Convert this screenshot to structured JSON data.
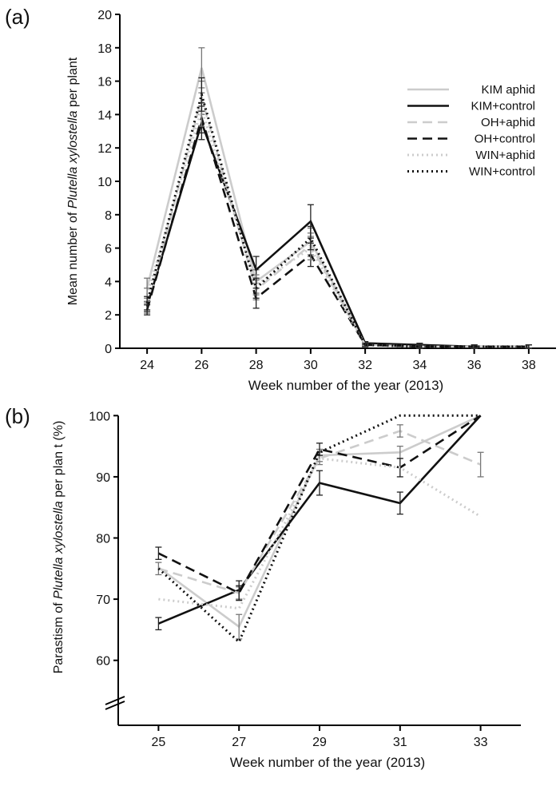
{
  "panels": {
    "a_label": "(a)",
    "b_label": "(b)"
  },
  "chart_data": [
    {
      "type": "line",
      "panel": "(a)",
      "ylabel_pre": "Mean number of ",
      "ylabel_species": "Plutella xylostella",
      "ylabel_post": " per plant",
      "xlabel": "Week number of the year (2013)",
      "xlim": [
        23,
        39
      ],
      "ylim": [
        0,
        20
      ],
      "xticks": [
        24,
        26,
        28,
        30,
        32,
        34,
        36,
        38
      ],
      "yticks": [
        0,
        2,
        4,
        6,
        8,
        10,
        12,
        14,
        16,
        18,
        20
      ],
      "legend": "top-right",
      "x": [
        24,
        26,
        28,
        30,
        32,
        34,
        36,
        38
      ],
      "series": [
        {
          "name": "KIM aphid",
          "color": "#cccccc",
          "dash": "solid",
          "values": [
            3.6,
            16.8,
            4.0,
            6.4,
            0.3,
            0.2,
            0.1,
            0.1
          ],
          "err": [
            0.6,
            1.2,
            0.7,
            0.8,
            0.1,
            0.1,
            0.1,
            0.1
          ]
        },
        {
          "name": "KIM+control",
          "color": "#111111",
          "dash": "solid",
          "values": [
            2.5,
            13.5,
            4.7,
            7.6,
            0.3,
            0.2,
            0.1,
            0.1
          ],
          "err": [
            0.3,
            1.0,
            0.8,
            1.0,
            0.1,
            0.1,
            0.1,
            0.1
          ]
        },
        {
          "name": "OH+aphid",
          "color": "#cccccc",
          "dash": "dashed",
          "values": [
            2.4,
            15.0,
            3.5,
            6.2,
            0.2,
            0.1,
            0.1,
            0.1
          ],
          "err": [
            0.3,
            1.0,
            0.6,
            0.7,
            0.1,
            0.1,
            0.1,
            0.1
          ]
        },
        {
          "name": "OH+control",
          "color": "#111111",
          "dash": "dashed",
          "values": [
            2.3,
            13.8,
            3.0,
            5.6,
            0.2,
            0.1,
            0.1,
            0.1
          ],
          "err": [
            0.3,
            0.9,
            0.6,
            0.7,
            0.1,
            0.1,
            0.1,
            0.1
          ]
        },
        {
          "name": "WIN+aphid",
          "color": "#cccccc",
          "dash": "dotted",
          "values": [
            3.2,
            14.3,
            3.8,
            6.0,
            0.2,
            0.1,
            0.1,
            0.1
          ],
          "err": [
            0.4,
            1.0,
            0.6,
            0.7,
            0.1,
            0.1,
            0.1,
            0.1
          ]
        },
        {
          "name": "WIN+control",
          "color": "#111111",
          "dash": "dotted",
          "values": [
            2.7,
            15.2,
            3.6,
            6.6,
            0.2,
            0.1,
            0.1,
            0.1
          ],
          "err": [
            0.4,
            1.0,
            0.6,
            0.7,
            0.1,
            0.1,
            0.1,
            0.1
          ]
        }
      ]
    },
    {
      "type": "line",
      "panel": "(b)",
      "ylabel_pre": "Parastism of ",
      "ylabel_species": "Plutella xylostella",
      "ylabel_post": " per plan t (%)",
      "xlabel": "Week number of the year (2013)",
      "xlim": [
        24,
        34
      ],
      "ylim": [
        55,
        102
      ],
      "axis_break": true,
      "xticks": [
        25,
        27,
        29,
        31,
        33
      ],
      "yticks": [
        60,
        70,
        80,
        90,
        100
      ],
      "x": [
        25,
        27,
        29,
        31,
        33
      ],
      "series": [
        {
          "name": "KIM aphid",
          "color": "#cccccc",
          "dash": "solid",
          "values": [
            75.2,
            65.5,
            93.5,
            94.0,
            100
          ],
          "err": [
            0,
            2.0,
            1.0,
            1.0,
            0
          ]
        },
        {
          "name": "KIM+control",
          "color": "#111111",
          "dash": "solid",
          "values": [
            66.0,
            71.5,
            89.0,
            85.7,
            100
          ],
          "err": [
            1.0,
            1.5,
            2.0,
            1.8,
            0
          ]
        },
        {
          "name": "OH+aphid",
          "color": "#cccccc",
          "dash": "dashed",
          "values": [
            75.0,
            71.0,
            93.0,
            97.5,
            92.0
          ],
          "err": [
            1.0,
            1.0,
            1.0,
            1.0,
            2.0
          ]
        },
        {
          "name": "OH+control",
          "color": "#111111",
          "dash": "dashed",
          "values": [
            77.5,
            71.0,
            94.5,
            91.5,
            100
          ],
          "err": [
            1.0,
            1.2,
            1.0,
            1.5,
            0
          ]
        },
        {
          "name": "WIN+aphid",
          "color": "#cccccc",
          "dash": "dotted",
          "values": [
            70.0,
            68.5,
            93.0,
            91.5,
            83.5
          ],
          "err": [
            0,
            0,
            0,
            0,
            0
          ]
        },
        {
          "name": "WIN+control",
          "color": "#111111",
          "dash": "dotted",
          "values": [
            75.0,
            63.0,
            94.0,
            100,
            100
          ],
          "err": [
            0,
            0,
            0,
            0,
            0
          ]
        }
      ]
    }
  ]
}
